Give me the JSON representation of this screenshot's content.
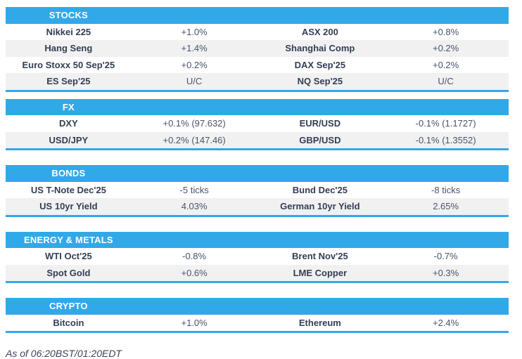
{
  "theme": {
    "accent_blue": "#31a9e8",
    "row_alt_gray": "#f1f1f2",
    "name_text": "#333e54",
    "value_text": "#49536a"
  },
  "sections": [
    {
      "title": "STOCKS",
      "rows": [
        [
          "Nikkei 225",
          "+1.0%",
          "ASX 200",
          "+0.8%"
        ],
        [
          "Hang Seng",
          "+1.4%",
          "Shanghai Comp",
          "+0.2%"
        ],
        [
          "Euro Stoxx 50 Sep'25",
          "+0.2%",
          "DAX Sep'25",
          "+0.2%"
        ],
        [
          "ES Sep'25",
          "U/C",
          "NQ Sep'25",
          "U/C"
        ]
      ]
    },
    {
      "title": "FX",
      "rows": [
        [
          "DXY",
          "+0.1% (97.632)",
          "EUR/USD",
          "-0.1% (1.1727)"
        ],
        [
          "USD/JPY",
          "+0.2% (147.46)",
          "GBP/USD",
          "-0.1% (1.3552)"
        ]
      ]
    },
    {
      "title": "BONDS",
      "rows": [
        [
          "US T-Note Dec'25",
          "-5 ticks",
          "Bund Dec'25",
          "-8 ticks"
        ],
        [
          "US 10yr Yield",
          "4.03%",
          "German 10yr Yield",
          "2.65%"
        ]
      ]
    },
    {
      "title": "ENERGY & METALS",
      "rows": [
        [
          "WTI Oct'25",
          "-0.8%",
          "Brent Nov'25",
          "-0.7%"
        ],
        [
          "Spot Gold",
          "+0.6%",
          "LME Copper",
          "+0.3%"
        ]
      ]
    },
    {
      "title": "CRYPTO",
      "rows": [
        [
          "Bitcoin",
          "+1.0%",
          "Ethereum",
          "+2.4%"
        ]
      ]
    }
  ],
  "footer": {
    "as_of": "As of 06:20BST/01:20EDT"
  }
}
